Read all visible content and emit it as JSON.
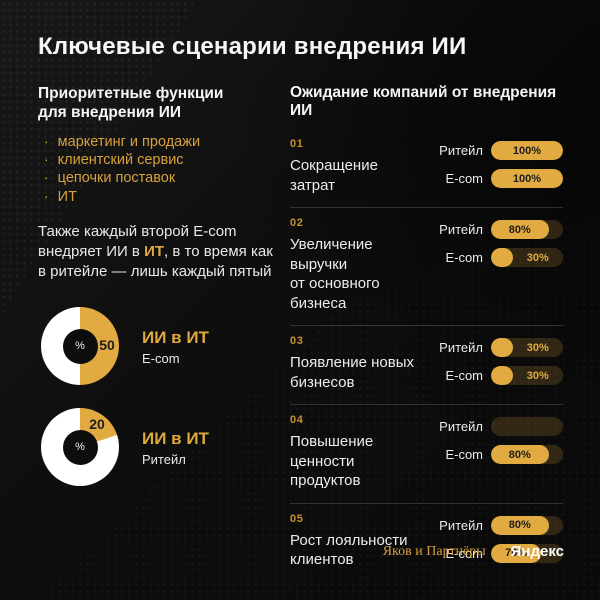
{
  "title": "Ключевые сценарии внедрения ИИ",
  "colors": {
    "gold": "#E2AB41",
    "background": "#0B0B0B",
    "pill_track": "#3A301A",
    "donut_rest": "#FFFFFF"
  },
  "left": {
    "heading": "Приоритетные функции\nдля внедрения ИИ",
    "bullet_glyph": "·",
    "bullets": [
      "маркетинг и продажи",
      "клиентский сервис",
      "цепочки поставок",
      "ИТ"
    ],
    "note": {
      "pre": "Также каждый второй E-com внедряет ИИ в ",
      "highlight": "ИТ",
      "post": ",  в то время как в ритейле — лишь каждый пятый"
    }
  },
  "chart_data": [
    {
      "type": "pie",
      "subtype": "donut",
      "series_label": "ИИ в ИТ",
      "segment": "E-com",
      "value": 50,
      "unit": "%",
      "center_label": "%",
      "colors": {
        "filled": "#E2AB41",
        "rest": "#FFFFFF"
      }
    },
    {
      "type": "pie",
      "subtype": "donut",
      "series_label": "ИИ в ИТ",
      "segment": "Ритейл",
      "value": 20,
      "unit": "%",
      "center_label": "%",
      "colors": {
        "filled": "#E2AB41",
        "rest": "#FFFFFF"
      }
    },
    {
      "type": "bar",
      "subtype": "grouped-horizontal",
      "title": "Ожидание компаний от внедрения ИИ",
      "unit": "%",
      "xlim": [
        0,
        100
      ],
      "categories": [
        "Ритейл",
        "E-com"
      ],
      "items": [
        {
          "num": "01",
          "label": "Сокращение\nзатрат",
          "series": [
            {
              "name": "Ритейл",
              "value": 100
            },
            {
              "name": "E-com",
              "value": 100
            }
          ]
        },
        {
          "num": "02",
          "label": "Увеличение\nвыручки\nот основного\nбизнеса",
          "series": [
            {
              "name": "Ритейл",
              "value": 80
            },
            {
              "name": "E-com",
              "value": 30
            }
          ]
        },
        {
          "num": "03",
          "label": "Появление новых\nбизнесов",
          "series": [
            {
              "name": "Ритейл",
              "value": 30
            },
            {
              "name": "E-com",
              "value": 30
            }
          ]
        },
        {
          "num": "04",
          "label": "Повышение\nценности\nпродуктов",
          "series": [
            {
              "name": "Ритейл",
              "value": null
            },
            {
              "name": "E-com",
              "value": 80
            }
          ]
        },
        {
          "num": "05",
          "label": "Рост лояльности\nклиентов",
          "series": [
            {
              "name": "Ритейл",
              "value": 80
            },
            {
              "name": "E-com",
              "value": 70
            }
          ]
        }
      ]
    }
  ],
  "footer": {
    "partner": "Яков и Партнёры",
    "separator": "×",
    "brand": "Яндекс"
  }
}
